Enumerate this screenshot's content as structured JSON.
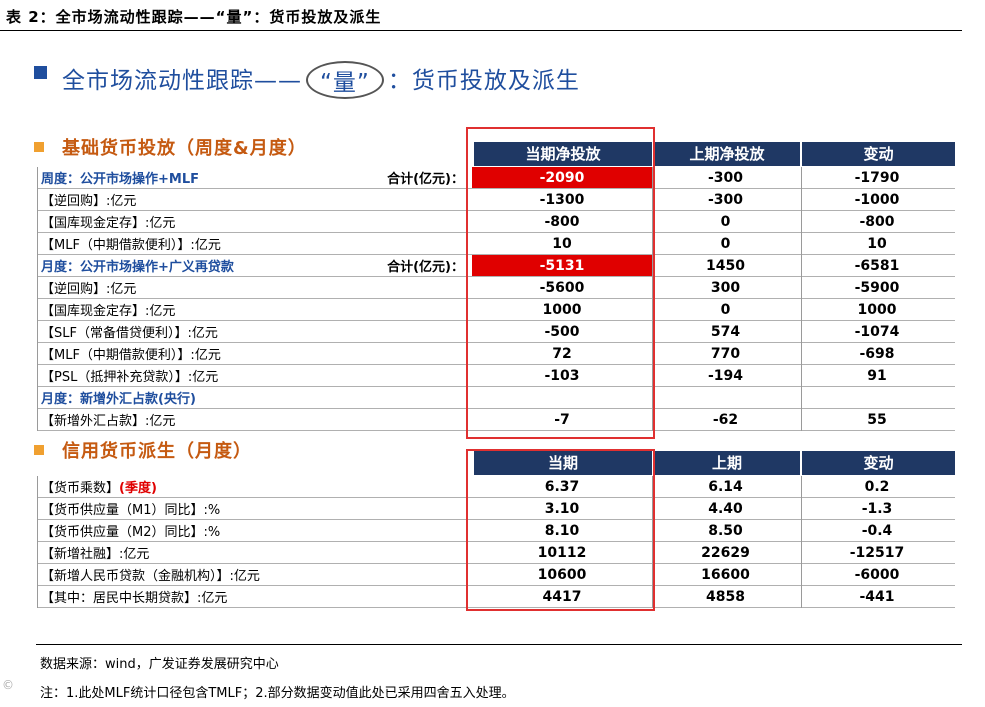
{
  "figure_title": "表 2：全市场流动性跟踪——“量”：货币投放及派生",
  "banner": {
    "prefix": "全市场流动性跟踪——",
    "quoted": "“量”",
    "suffix": "：货币投放及派生"
  },
  "section1": {
    "title": "基础货币投放（周度&月度）",
    "headers": [
      "当期净投放",
      "上期净投放",
      "变动"
    ],
    "rows": [
      {
        "label": "周度：公开市场操作+MLF",
        "total_label": "合计(亿元)：",
        "cur": "-2090",
        "prev": "-300",
        "chg": "-1790"
      },
      {
        "label": "【逆回购】:亿元",
        "cur": "-1300",
        "prev": "-300",
        "chg": "-1000"
      },
      {
        "label": "【国库现金定存】:亿元",
        "cur": "-800",
        "prev": "0",
        "chg": "-800"
      },
      {
        "label": "【MLF（中期借款便利）】:亿元",
        "cur": "10",
        "prev": "0",
        "chg": "10"
      },
      {
        "label": "月度：公开市场操作+广义再贷款",
        "total_label": "合计(亿元)：",
        "cur": "-5131",
        "prev": "1450",
        "chg": "-6581"
      },
      {
        "label": "【逆回购】:亿元",
        "cur": "-5600",
        "prev": "300",
        "chg": "-5900"
      },
      {
        "label": "【国库现金定存】:亿元",
        "cur": "1000",
        "prev": "0",
        "chg": "1000"
      },
      {
        "label": "【SLF（常备借贷便利）】:亿元",
        "cur": "-500",
        "prev": "574",
        "chg": "-1074"
      },
      {
        "label": "【MLF（中期借款便利）】:亿元",
        "cur": "72",
        "prev": "770",
        "chg": "-698"
      },
      {
        "label": "【PSL（抵押补充贷款）】:亿元",
        "cur": "-103",
        "prev": "-194",
        "chg": "91"
      },
      {
        "label": "月度：新增外汇占款(央行)",
        "cur": "",
        "prev": "",
        "chg": ""
      },
      {
        "label": "【新增外汇占款】:亿元",
        "cur": "-7",
        "prev": "-62",
        "chg": "55"
      }
    ]
  },
  "section2": {
    "title": "信用货币派生（月度）",
    "headers": [
      "当期",
      "上期",
      "变动"
    ],
    "rows": [
      {
        "label": "【货币乘数】",
        "label_extra": "(季度)",
        "cur": "6.37",
        "prev": "6.14",
        "chg": "0.2"
      },
      {
        "label": "【货币供应量（M1）同比】:%",
        "cur": "3.10",
        "prev": "4.40",
        "chg": "-1.3"
      },
      {
        "label": "【货币供应量（M2）同比】:%",
        "cur": "8.10",
        "prev": "8.50",
        "chg": "-0.4"
      },
      {
        "label": "【新增社融】:亿元",
        "cur": "10112",
        "prev": "22629",
        "chg": "-12517"
      },
      {
        "label": "【新增人民币贷款（金融机构）】:亿元",
        "cur": "10600",
        "prev": "16600",
        "chg": "-6000"
      },
      {
        "label": "【其中：居民中长期贷款】:亿元",
        "cur": "4417",
        "prev": "4858",
        "chg": "-441"
      }
    ]
  },
  "source": "数据来源：wind，广发证券发展研究中心",
  "note": "注：1.此处MLF统计口径包含TMLF；2.部分数据变动值此处已采用四舍五入处理。",
  "watermark": "©"
}
